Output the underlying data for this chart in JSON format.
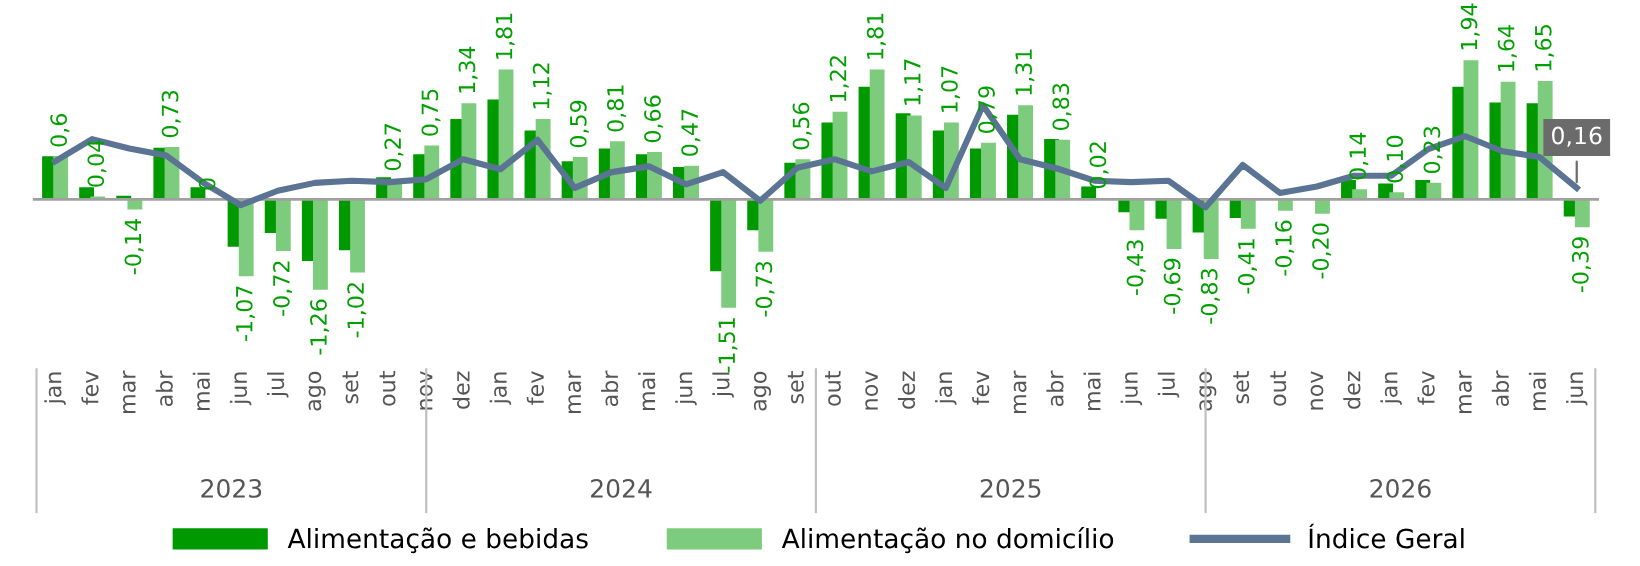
{
  "chart_data": {
    "type": "bar",
    "categories": [
      "jan",
      "fev",
      "mar",
      "abr",
      "mai",
      "jun",
      "jul",
      "ago",
      "set",
      "out",
      "nov",
      "dez",
      "jan",
      "fev",
      "mar",
      "abr",
      "mai",
      "jun",
      "jul",
      "ago",
      "set",
      "out",
      "nov",
      "dez",
      "jan",
      "fev",
      "mar",
      "abr",
      "mai",
      "jun",
      "jul",
      "ago",
      "set",
      "out",
      "nov",
      "dez",
      "jan",
      "fev",
      "mar",
      "abr",
      "mai",
      "jun"
    ],
    "series": [
      {
        "name": "Alimentação e bebidas",
        "color": "#009a00",
        "values": [
          0.6,
          0.17,
          0.05,
          0.72,
          0.17,
          -0.66,
          -0.47,
          -0.86,
          -0.71,
          0.31,
          0.63,
          1.12,
          1.39,
          0.96,
          0.53,
          0.71,
          0.63,
          0.45,
          -1.0,
          -0.43,
          0.51,
          1.07,
          1.57,
          1.2,
          0.96,
          0.71,
          1.18,
          0.84,
          0.18,
          -0.18,
          -0.27,
          -0.46,
          -0.26,
          0,
          0,
          0.27,
          0.22,
          0.27,
          1.57,
          1.35,
          1.34,
          -0.24
        ]
      },
      {
        "name": "Alimentação no domicílio",
        "color": "#7dcc7d",
        "values": [
          0.6,
          0.04,
          -0.14,
          0.73,
          0,
          -1.07,
          -0.72,
          -1.26,
          -1.02,
          0.27,
          0.75,
          1.34,
          1.81,
          1.12,
          0.59,
          0.81,
          0.66,
          0.47,
          -1.51,
          -0.73,
          0.56,
          1.22,
          1.81,
          1.17,
          1.07,
          0.79,
          1.31,
          0.83,
          0.02,
          -0.43,
          -0.69,
          -0.83,
          -0.41,
          -0.16,
          -0.2,
          0.14,
          0.1,
          0.23,
          1.94,
          1.64,
          1.65,
          -0.39
        ],
        "value_labels": [
          "0,6",
          "0,04",
          "-0,14",
          "0,73",
          "0",
          "-1,07",
          "-0,72",
          "-1,26",
          "-1,02",
          "0,27",
          "0,75",
          "1,34",
          "1,81",
          "1,12",
          "0,59",
          "0,81",
          "0,66",
          "0,47",
          "-1,51",
          "-0,73",
          "0,56",
          "1,22",
          "1,81",
          "1,17",
          "1,07",
          "0,79",
          "1,31",
          "0,83",
          "0,02",
          "-0,43",
          "-0,69",
          "-0,83",
          "-0,41",
          "-0,16",
          "-0,20",
          "0,14",
          "0,10",
          "0,23",
          "1,94",
          "1,64",
          "1,65",
          "-0,39"
        ]
      },
      {
        "name": "Índice Geral",
        "type": "line",
        "color": "#5b7493",
        "values": [
          0.53,
          0.84,
          0.71,
          0.61,
          0.23,
          -0.08,
          0.12,
          0.23,
          0.26,
          0.24,
          0.28,
          0.56,
          0.42,
          0.83,
          0.16,
          0.38,
          0.46,
          0.21,
          0.38,
          -0.02,
          0.44,
          0.56,
          0.39,
          0.52,
          0.16,
          1.31,
          0.56,
          0.43,
          0.26,
          0.24,
          0.26,
          -0.11,
          0.48,
          0.09,
          0.18,
          0.33,
          0.33,
          0.7,
          0.88,
          0.67,
          0.59,
          0.16
        ],
        "value_labels": [
          null,
          null,
          null,
          null,
          null,
          null,
          null,
          null,
          null,
          null,
          null,
          null,
          null,
          null,
          null,
          null,
          null,
          null,
          null,
          null,
          null,
          null,
          null,
          null,
          null,
          null,
          null,
          null,
          null,
          null,
          null,
          null,
          null,
          null,
          null,
          null,
          null,
          null,
          null,
          null,
          null,
          "0,16"
        ]
      }
    ],
    "annotations": [
      "2023",
      "2024",
      "2025",
      "2026"
    ],
    "legend": "bottom",
    "grid": false,
    "marker": "none",
    "line_style": "solid"
  }
}
